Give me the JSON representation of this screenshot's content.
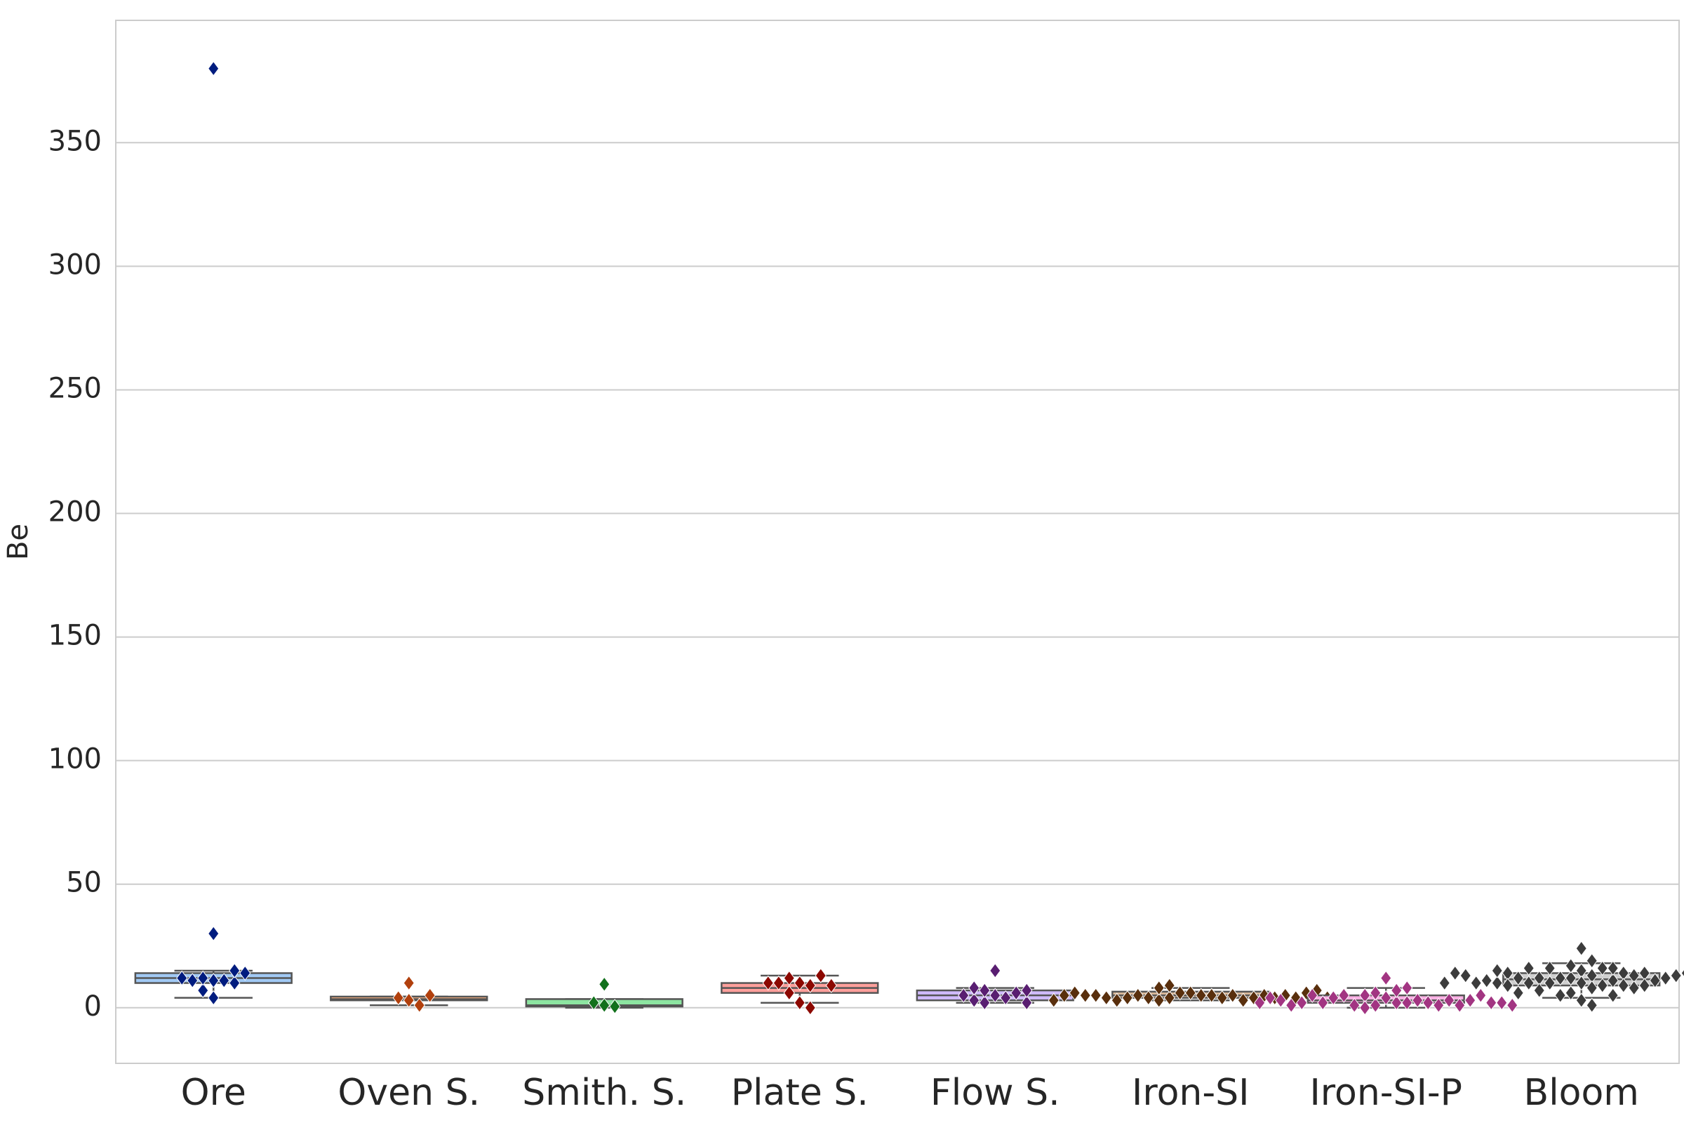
{
  "chart_data": {
    "type": "box",
    "y_label": "Be",
    "categories": [
      "Ore",
      "Oven S.",
      "Smith. S.",
      "Plate S.",
      "Flow S.",
      "Iron-SI",
      "Iron-SI-P",
      "Bloom"
    ],
    "boxes": [
      {
        "color": "#a1c9f4",
        "point_color": "#001c7f",
        "whislo": 4,
        "q1": 10,
        "med": 12,
        "q3": 14,
        "whishi": 15,
        "points": [
          380,
          30,
          11,
          11,
          7,
          4,
          10,
          11,
          12,
          14,
          15,
          12
        ]
      },
      {
        "color": "#ffb482",
        "point_color": "#b1400d",
        "whislo": 1,
        "q1": 3,
        "med": 3.5,
        "q3": 4.5,
        "whishi": 4.5,
        "points": [
          10,
          3,
          1,
          4,
          5
        ]
      },
      {
        "color": "#8de5a1",
        "point_color": "#12711c",
        "whislo": 0,
        "q1": 0.5,
        "med": 1,
        "q3": 3.5,
        "whishi": 3.5,
        "points": [
          9.5,
          1,
          0.5,
          2
        ]
      },
      {
        "color": "#ff9f9b",
        "point_color": "#8c0800",
        "whislo": 2,
        "q1": 6,
        "med": 8,
        "q3": 10,
        "whishi": 13,
        "points": [
          10,
          9,
          6,
          2,
          0,
          12,
          13,
          10,
          9,
          10
        ]
      },
      {
        "color": "#d0bbff",
        "point_color": "#591e71",
        "whislo": 2,
        "q1": 3,
        "med": 5,
        "q3": 7,
        "whishi": 8,
        "points": [
          15,
          5,
          4,
          2,
          7,
          6,
          3,
          2,
          8,
          5,
          7
        ]
      },
      {
        "color": "#debb9b",
        "point_color": "#592f0d",
        "whislo": 3,
        "q1": 4,
        "med": 5,
        "q3": 6.5,
        "whishi": 8,
        "points": [
          6,
          5,
          6,
          5,
          4,
          4,
          3,
          5,
          4,
          3,
          5,
          4,
          9,
          8,
          4,
          5,
          3,
          4,
          4,
          5,
          5,
          4,
          5,
          6,
          6,
          7,
          5,
          4,
          3
        ]
      },
      {
        "color": "#fab0e4",
        "point_color": "#a23582",
        "whislo": 0,
        "q1": 2,
        "med": 3,
        "q3": 5,
        "whishi": 8,
        "points": [
          4,
          2,
          1,
          2,
          7,
          5,
          3,
          1,
          2,
          5,
          1,
          4,
          0,
          3,
          12,
          2,
          1,
          5,
          3,
          2,
          5,
          1,
          6,
          2,
          8,
          3,
          2,
          4,
          1,
          2
        ]
      },
      {
        "color": "#cfcfcf",
        "point_color": "#3c3c3c",
        "whislo": 4,
        "q1": 9,
        "med": 11.5,
        "q3": 14,
        "whishi": 18,
        "points": [
          15,
          13,
          10,
          12,
          9,
          8,
          19,
          16,
          12,
          11,
          10,
          14,
          16,
          9,
          12,
          6,
          13,
          3,
          10,
          16,
          8,
          14,
          5,
          12,
          24,
          11,
          1,
          9,
          16,
          14,
          12,
          7,
          10,
          5,
          13,
          17,
          11,
          6,
          14,
          10,
          12,
          13,
          9,
          15,
          11,
          14,
          12,
          10,
          13
        ]
      }
    ],
    "ylim": [
      -22.5,
      399.5
    ],
    "yticks": [
      0,
      50,
      100,
      150,
      200,
      250,
      300,
      350
    ],
    "grid": true
  }
}
